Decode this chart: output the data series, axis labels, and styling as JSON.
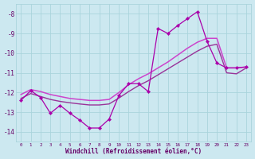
{
  "line_jagged": {
    "x": [
      0,
      1,
      2,
      3,
      4,
      5,
      6,
      7,
      8,
      9,
      10,
      11,
      12,
      13,
      14,
      15,
      16,
      17,
      18,
      19,
      20,
      21,
      22,
      23
    ],
    "y": [
      -12.4,
      -11.9,
      -12.25,
      -13.05,
      -12.65,
      -13.05,
      -13.4,
      -13.8,
      -13.8,
      -13.35,
      -12.15,
      -11.55,
      -11.55,
      -11.95,
      -8.75,
      -9.0,
      -8.6,
      -8.25,
      -7.9,
      -9.4,
      -10.5,
      -10.75,
      -10.75,
      -10.7
    ],
    "color": "#aa00aa",
    "marker": "D",
    "markersize": 2.2,
    "linewidth": 0.9
  },
  "line_upper_diag": {
    "x": [
      0,
      1,
      2,
      3,
      4,
      5,
      6,
      7,
      8,
      9,
      10,
      11,
      12,
      13,
      14,
      15,
      16,
      17,
      18,
      19,
      20,
      21,
      22,
      23
    ],
    "y": [
      -12.1,
      -11.85,
      -11.95,
      -12.1,
      -12.2,
      -12.3,
      -12.35,
      -12.4,
      -12.4,
      -12.35,
      -12.0,
      -11.6,
      -11.3,
      -11.05,
      -10.75,
      -10.45,
      -10.1,
      -9.75,
      -9.45,
      -9.25,
      -9.25,
      -10.75,
      -10.75,
      -10.7
    ],
    "color": "#cc44cc",
    "marker": null,
    "linewidth": 1.1
  },
  "line_lower_diag": {
    "x": [
      0,
      1,
      2,
      3,
      4,
      5,
      6,
      7,
      8,
      9,
      10,
      11,
      12,
      13,
      14,
      15,
      16,
      17,
      18,
      19,
      20,
      21,
      22,
      23
    ],
    "y": [
      -12.3,
      -12.05,
      -12.2,
      -12.35,
      -12.45,
      -12.52,
      -12.58,
      -12.63,
      -12.63,
      -12.58,
      -12.28,
      -11.95,
      -11.65,
      -11.4,
      -11.1,
      -10.8,
      -10.5,
      -10.2,
      -9.9,
      -9.65,
      -9.55,
      -11.0,
      -11.05,
      -10.75
    ],
    "color": "#993399",
    "marker": null,
    "linewidth": 1.0
  },
  "xlabel": "Windchill (Refroidissement éolien,°C)",
  "xlim": [
    -0.5,
    23.5
  ],
  "ylim": [
    -14.5,
    -7.5
  ],
  "yticks": [
    -14,
    -13,
    -12,
    -11,
    -10,
    -9,
    -8
  ],
  "xticks": [
    0,
    1,
    2,
    3,
    4,
    5,
    6,
    7,
    8,
    9,
    10,
    11,
    12,
    13,
    14,
    15,
    16,
    17,
    18,
    19,
    20,
    21,
    22,
    23
  ],
  "background_color": "#cce8f0",
  "grid_color": "#aad4dc",
  "text_color": "#660066",
  "figwidth": 3.2,
  "figheight": 2.0,
  "dpi": 100
}
